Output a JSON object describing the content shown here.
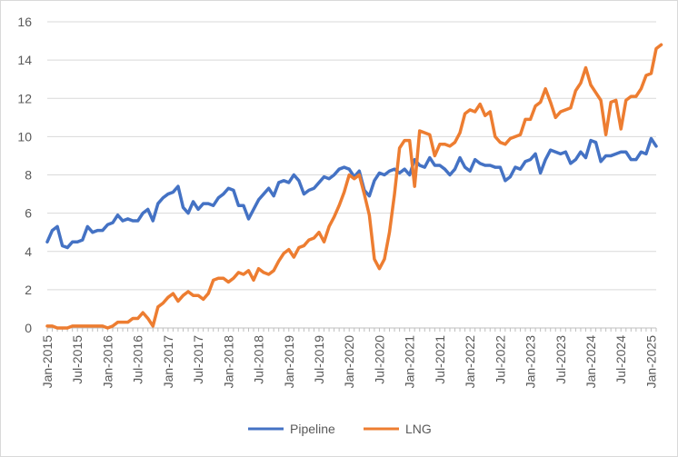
{
  "chart_data": {
    "type": "line",
    "title": "",
    "xlabel": "",
    "ylabel": "",
    "x_start": "2015-01",
    "x_end": "2025-04",
    "x_tick_labels": [
      "Jan-2015",
      "Jul-2015",
      "Jan-2016",
      "Jul-2016",
      "Jan-2017",
      "Jul-2017",
      "Jan-2018",
      "Jul-2018",
      "Jan-2019",
      "Jul-2019",
      "Jan-2020",
      "Jul-2020",
      "Jan-2021",
      "Jul-2021",
      "Jan-2022",
      "Jul-2022",
      "Jan-2023",
      "Jul-2023",
      "Jan-2024",
      "Jul-2024",
      "Jan-2025"
    ],
    "ylim": [
      0,
      16
    ],
    "y_ticks": [
      "0",
      "2",
      "4",
      "6",
      "8",
      "10",
      "12",
      "14",
      "16"
    ],
    "gridlines": "horizontal",
    "legend_position": "bottom",
    "series": [
      {
        "name": "Pipeline",
        "color": "#4472C4",
        "values": [
          4.5,
          5.1,
          5.3,
          4.3,
          4.2,
          4.5,
          4.5,
          4.6,
          5.3,
          5.0,
          5.1,
          5.1,
          5.4,
          5.5,
          5.9,
          5.6,
          5.7,
          5.6,
          5.6,
          6.0,
          6.2,
          5.6,
          6.5,
          6.8,
          7.0,
          7.1,
          7.4,
          6.3,
          6.0,
          6.6,
          6.2,
          6.5,
          6.5,
          6.4,
          6.8,
          7.0,
          7.3,
          7.2,
          6.4,
          6.4,
          5.7,
          6.2,
          6.7,
          7.0,
          7.3,
          6.9,
          7.6,
          7.7,
          7.6,
          8.0,
          7.7,
          7.0,
          7.2,
          7.3,
          7.6,
          7.9,
          7.8,
          8.0,
          8.3,
          8.4,
          8.3,
          7.9,
          8.2,
          7.2,
          6.9,
          7.7,
          8.1,
          8.0,
          8.2,
          8.3,
          8.1,
          8.3,
          8.0,
          8.8,
          8.5,
          8.4,
          8.9,
          8.5,
          8.5,
          8.3,
          8.0,
          8.3,
          8.9,
          8.4,
          8.2,
          8.8,
          8.6,
          8.5,
          8.5,
          8.4,
          8.4,
          7.7,
          7.9,
          8.4,
          8.3,
          8.7,
          8.8,
          9.1,
          8.1,
          8.8,
          9.3,
          9.2,
          9.1,
          9.2,
          8.6,
          8.8,
          9.2,
          8.9,
          9.8,
          9.7,
          8.7,
          9.0,
          9.0,
          9.1,
          9.2,
          9.2,
          8.8,
          8.8,
          9.2,
          9.1,
          9.9,
          9.5
        ]
      },
      {
        "name": "LNG",
        "color": "#ED7D31",
        "values": [
          0.1,
          0.1,
          0.0,
          0.0,
          0.0,
          0.1,
          0.1,
          0.1,
          0.1,
          0.1,
          0.1,
          0.1,
          0.0,
          0.1,
          0.3,
          0.3,
          0.3,
          0.5,
          0.5,
          0.8,
          0.5,
          0.1,
          1.1,
          1.3,
          1.6,
          1.8,
          1.4,
          1.7,
          1.9,
          1.7,
          1.7,
          1.5,
          1.8,
          2.5,
          2.6,
          2.6,
          2.4,
          2.6,
          2.9,
          2.8,
          3.0,
          2.5,
          3.1,
          2.9,
          2.8,
          3.0,
          3.5,
          3.9,
          4.1,
          3.7,
          4.2,
          4.3,
          4.6,
          4.7,
          5.0,
          4.5,
          5.3,
          5.8,
          6.4,
          7.1,
          8.0,
          7.8,
          8.0,
          7.0,
          5.9,
          3.6,
          3.1,
          3.6,
          5.0,
          7.0,
          9.4,
          9.8,
          9.8,
          7.4,
          10.3,
          10.2,
          10.1,
          9.0,
          9.6,
          9.6,
          9.5,
          9.7,
          10.2,
          11.2,
          11.4,
          11.3,
          11.7,
          11.1,
          11.3,
          10.0,
          9.7,
          9.6,
          9.9,
          10.0,
          10.1,
          10.9,
          10.9,
          11.6,
          11.8,
          12.5,
          11.8,
          11.0,
          11.3,
          11.4,
          11.5,
          12.4,
          12.8,
          13.6,
          12.7,
          12.3,
          11.9,
          10.1,
          11.8,
          11.9,
          10.4,
          11.9,
          12.1,
          12.1,
          12.5,
          13.2,
          13.3,
          14.6,
          14.8
        ]
      }
    ]
  }
}
